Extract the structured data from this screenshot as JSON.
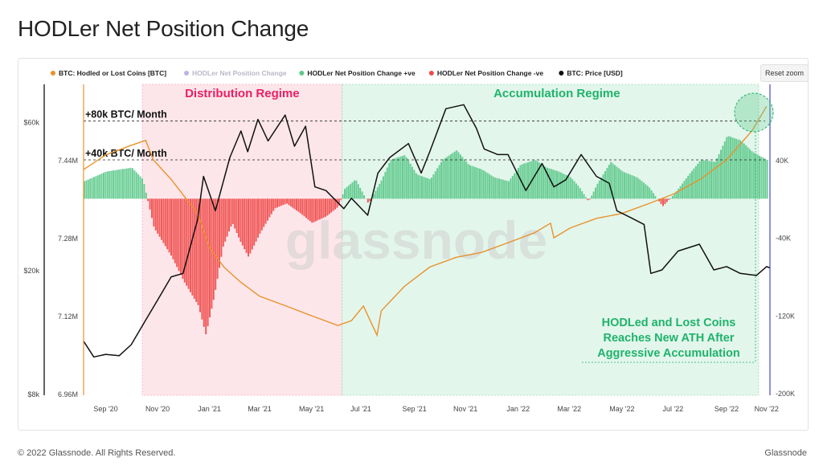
{
  "page": {
    "title": "HODLer Net Position Change",
    "reset_zoom": "Reset zoom",
    "copyright": "© 2022 Glassnode. All Rights Reserved.",
    "brand": "Glassnode",
    "watermark": "glassnode"
  },
  "colors": {
    "hodled": "#e8922c",
    "net_position": "#4a47c4",
    "positive": "#5cc98b",
    "negative": "#f04a4a",
    "price": "#111111",
    "distribution_shade": "#fde6ea",
    "accumulation_shade": "#e3f6ec",
    "distribution_text": "#ea1f66",
    "accumulation_text": "#1fb36b"
  },
  "chart_data": {
    "type": "line",
    "title": "HODLer Net Position Change",
    "legend": [
      {
        "name": "BTC: Hodled or Lost Coins [BTC]",
        "color": "#e8922c",
        "enabled": true
      },
      {
        "name": "HODLer Net Position Change",
        "color": "#4a47c4",
        "enabled": false
      },
      {
        "name": "HODLer Net Position Change +ve",
        "color": "#5cc98b",
        "enabled": true
      },
      {
        "name": "HODLer Net Position Change -ve",
        "color": "#f04a4a",
        "enabled": true
      },
      {
        "name": "BTC: Price [USD]",
        "color": "#111111",
        "enabled": true
      }
    ],
    "legend_position": "top-left",
    "x_axis": {
      "type": "date",
      "ticks": [
        "Sep '20",
        "Nov '20",
        "Jan '21",
        "Mar '21",
        "May '21",
        "Jul '21",
        "Sep '21",
        "Nov '21",
        "Jan '22",
        "Mar '22",
        "May '22",
        "Jul '22",
        "Sep '22",
        "Nov '22"
      ],
      "range": [
        "2020-08-20",
        "2022-11-05"
      ]
    },
    "y_axes": {
      "price": {
        "label": "",
        "scale": "log",
        "ticks": [
          "$8k",
          "$20k",
          "$60k"
        ]
      },
      "hodled": {
        "label": "",
        "scale": "linear",
        "ticks": [
          "6.96M",
          "7.12M",
          "7.28M",
          "7.44M"
        ],
        "range": [
          6.96,
          7.6
        ]
      },
      "net_position": {
        "label": "",
        "scale": "linear",
        "ticks": [
          "-200K",
          "-120K",
          "-40K",
          "40K"
        ],
        "range": [
          -200000,
          120000
        ]
      }
    },
    "grid": false,
    "regimes": [
      {
        "label": "Distribution Regime",
        "start": "2020-10-28",
        "end": "2021-06-20"
      },
      {
        "label": "Accumulation Regime",
        "start": "2021-06-20",
        "end": "2022-11-05"
      }
    ],
    "reference_lines": [
      {
        "label": "+80k BTC/ Month",
        "value": 80000
      },
      {
        "label": "+40k BTC/ Month",
        "value": 40000
      }
    ],
    "annotations": [
      {
        "text_lines": [
          "HODLed and Lost Coins",
          "Reaches New ATH After",
          "Aggressive Accumulation"
        ]
      }
    ],
    "price_series": {
      "name": "BTC: Price [USD]",
      "dates": [
        "2020-08-20",
        "2020-09-01",
        "2020-09-15",
        "2020-10-01",
        "2020-10-15",
        "2020-11-01",
        "2020-11-15",
        "2020-12-01",
        "2020-12-15",
        "2021-01-01",
        "2021-01-08",
        "2021-01-22",
        "2021-02-08",
        "2021-02-21",
        "2021-03-01",
        "2021-03-13",
        "2021-03-25",
        "2021-04-14",
        "2021-04-25",
        "2021-05-08",
        "2021-05-19",
        "2021-06-01",
        "2021-06-22",
        "2021-07-01",
        "2021-07-20",
        "2021-08-01",
        "2021-08-15",
        "2021-09-06",
        "2021-09-21",
        "2021-10-01",
        "2021-10-20",
        "2021-11-10",
        "2021-11-25",
        "2021-12-04",
        "2021-12-20",
        "2022-01-01",
        "2022-01-22",
        "2022-02-10",
        "2022-02-24",
        "2022-03-10",
        "2022-03-28",
        "2022-04-15",
        "2022-04-30",
        "2022-05-09",
        "2022-05-25",
        "2022-06-10",
        "2022-06-18",
        "2022-07-01",
        "2022-07-20",
        "2022-08-14",
        "2022-08-31",
        "2022-09-15",
        "2022-10-01",
        "2022-10-20",
        "2022-11-01",
        "2022-11-05"
      ],
      "values": [
        11800,
        10500,
        10700,
        10600,
        11500,
        13800,
        16000,
        19000,
        19500,
        29000,
        40000,
        31000,
        46000,
        56000,
        48000,
        61000,
        52000,
        63000,
        50000,
        58000,
        37000,
        36000,
        31500,
        34000,
        30000,
        41000,
        46000,
        51000,
        41000,
        48000,
        66000,
        68000,
        57000,
        49000,
        47000,
        47000,
        36000,
        44000,
        37000,
        39000,
        47000,
        40000,
        38000,
        31000,
        29500,
        28000,
        19500,
        20000,
        23000,
        24200,
        20000,
        20500,
        19500,
        19200,
        20500,
        20300
      ]
    },
    "hodled_series": {
      "name": "BTC: Hodled or Lost Coins [BTC]",
      "unit": "BTC (millions)",
      "dates": [
        "2020-08-20",
        "2020-09-15",
        "2020-10-15",
        "2020-11-01",
        "2020-11-10",
        "2020-12-01",
        "2021-01-01",
        "2021-01-15",
        "2021-02-01",
        "2021-02-20",
        "2021-03-15",
        "2021-04-15",
        "2021-05-15",
        "2021-06-15",
        "2021-07-01",
        "2021-07-15",
        "2021-07-31",
        "2021-08-05",
        "2021-09-01",
        "2021-10-01",
        "2021-11-01",
        "2021-12-01",
        "2022-01-01",
        "2022-02-01",
        "2022-02-20",
        "2022-02-24",
        "2022-03-15",
        "2022-04-15",
        "2022-05-15",
        "2022-06-15",
        "2022-07-15",
        "2022-08-15",
        "2022-09-15",
        "2022-10-15",
        "2022-11-01"
      ],
      "values": [
        7.42,
        7.45,
        7.47,
        7.48,
        7.44,
        7.4,
        7.33,
        7.26,
        7.22,
        7.19,
        7.16,
        7.14,
        7.12,
        7.1,
        7.11,
        7.14,
        7.08,
        7.13,
        7.18,
        7.22,
        7.24,
        7.25,
        7.27,
        7.29,
        7.31,
        7.28,
        7.3,
        7.32,
        7.33,
        7.35,
        7.37,
        7.4,
        7.44,
        7.5,
        7.55
      ]
    },
    "net_position_series": {
      "name": "HODLer Net Position Change",
      "unit": "BTC per month",
      "dates": [
        "2020-08-20",
        "2020-09-15",
        "2020-10-15",
        "2020-10-28",
        "2020-11-10",
        "2020-12-01",
        "2020-12-15",
        "2021-01-01",
        "2021-01-10",
        "2021-01-20",
        "2021-01-30",
        "2021-02-10",
        "2021-02-20",
        "2021-03-01",
        "2021-03-15",
        "2021-04-01",
        "2021-04-15",
        "2021-05-01",
        "2021-05-15",
        "2021-06-01",
        "2021-06-15",
        "2021-06-22",
        "2021-07-05",
        "2021-07-20",
        "2021-08-05",
        "2021-08-15",
        "2021-09-01",
        "2021-09-15",
        "2021-10-01",
        "2021-10-15",
        "2021-11-01",
        "2021-11-15",
        "2021-12-01",
        "2021-12-15",
        "2022-01-01",
        "2022-01-15",
        "2022-02-01",
        "2022-02-15",
        "2022-03-01",
        "2022-03-15",
        "2022-03-25",
        "2022-04-05",
        "2022-04-15",
        "2022-05-01",
        "2022-05-15",
        "2022-06-01",
        "2022-06-15",
        "2022-07-01",
        "2022-07-15",
        "2022-08-01",
        "2022-08-15",
        "2022-09-01",
        "2022-09-15",
        "2022-10-01",
        "2022-10-15",
        "2022-11-01"
      ],
      "values": [
        18000,
        28000,
        32000,
        20000,
        -30000,
        -60000,
        -85000,
        -110000,
        -140000,
        -100000,
        -50000,
        -25000,
        -45000,
        -60000,
        -35000,
        -10000,
        -5000,
        -15000,
        -25000,
        -18000,
        -8000,
        10000,
        20000,
        -5000,
        20000,
        40000,
        45000,
        25000,
        20000,
        40000,
        50000,
        35000,
        30000,
        22000,
        18000,
        35000,
        40000,
        32000,
        28000,
        22000,
        12000,
        -3000,
        15000,
        38000,
        28000,
        22000,
        12000,
        -8000,
        5000,
        25000,
        40000,
        38000,
        65000,
        60000,
        48000,
        40000
      ]
    }
  }
}
